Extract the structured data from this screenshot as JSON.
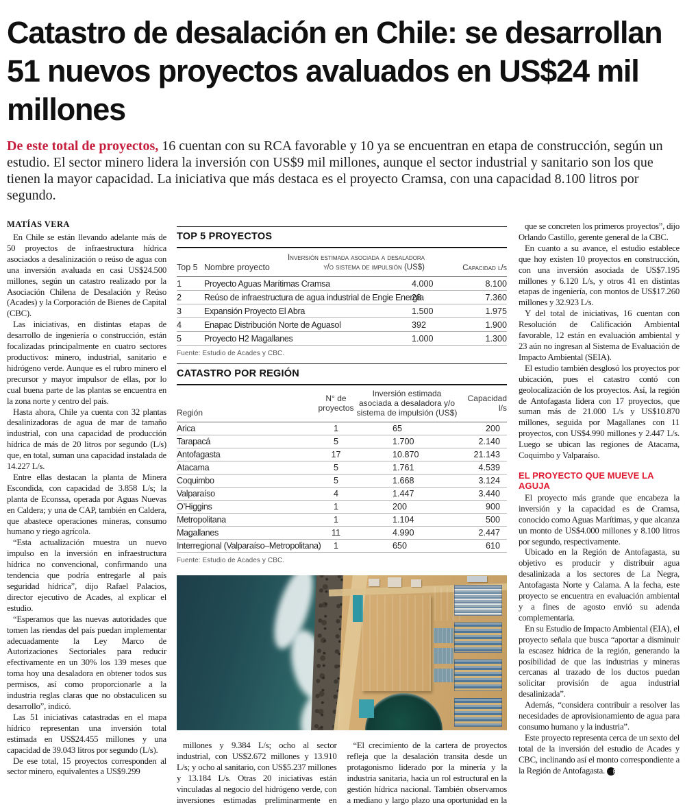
{
  "colors": {
    "accent_red": "#C51F3D",
    "subhead_red": "#E01931"
  },
  "article": {
    "headline": "Catastro de desalación en Chile: se desarrollan 51 nuevos proyectos avaluados en US$24 mil millones",
    "lede_lead_in": "De este total de proyectos,",
    "lede_rest": " 16 cuentan con su RCA favorable y 10 ya se encuentran en etapa de construcción, según un estudio. El sector minero lidera la inversión con US$9 mil millones, aunque el sector industrial y sanitario son los que tienen la mayor capacidad. La iniciativa que más destaca es el proyecto Cramsa, con una capacidad 8.100 litros por segundo.",
    "byline": "MATÍAS VERA"
  },
  "left_column": {
    "paragraphs": [
      "En Chile se están llevando adelante más de 50 proyectos de infraestructura hídrica asociados a desalinización o reúso de agua con una inversión avaluada en casi US$24.500 millones, según un catastro realizado por la Asociación Chilena de Desalación y Reúso (Acades) y la Corporación de Bienes de Capital (CBC).",
      "Las iniciativas, en distintas etapas de desarrollo de ingeniería o construcción, están focalizadas principalmente en cuatro sectores productivos: minero, industrial, sanitario e hidrógeno verde. Aunque es el rubro minero el precursor y mayor impulsor de ellas, por lo cual buena parte de las plantas se encuentra en la zona norte y centro del país.",
      "Hasta ahora, Chile ya cuenta con 32 plantas desalinizadoras de agua de mar de tamaño industrial, con una capacidad de producción hídrica de más de 20 litros por segundo (L/s) que, en total, suman una capacidad instalada de 14.227 L/s.",
      "Entre ellas destacan la planta de Minera Escondida, con capacidad de 3.858 L/s; la planta de Econssa, operada por Aguas Nuevas en Caldera; y una de CAP, también en Caldera, que abastece operaciones mineras, consumo humano y riego agrícola.",
      "“Esta actualización muestra un nuevo impulso en la inversión en infraestructura hídrica no convencional, confirmando una tendencia que podría entregarle al país seguridad hídrica”, dijo Rafael Palacios, director ejecutivo de Acades, al explicar el estudio.",
      "“Esperamos que las nuevas autoridades que tomen las riendas del país puedan implementar adecuadamente la Ley Marco de Autorizaciones Sectoriales para reducir efectivamente en un 30% los 139 meses que toma hoy una desaladora en obtener todos sus permisos, así como proporcionarle a la industria reglas claras que no obstaculicen su desarrollo”, indicó.",
      "Las 51 iniciativas catastradas en el mapa hídrico representan una inversión total estimada en US$24.455 millones y una capacidad de 39.043 litros por segundo (L/s).",
      "De ese total, 15 proyectos corresponden al sector minero, equivalentes a US$9.299"
    ]
  },
  "top5_table": {
    "title": "TOP 5 PROYECTOS",
    "col_headers": [
      "Top 5",
      "Nombre proyecto",
      "Inversión estimada asociada a desaladora y/o sistema de impulsión (US$)",
      "Capacidad l/s"
    ],
    "rows": [
      [
        "1",
        "Proyecto Aguas Marítimas Cramsa",
        "4.000",
        "8.100"
      ],
      [
        "2",
        "Reúso de infraestructura de agua industrial de Engie Energía",
        "28",
        "7.360"
      ],
      [
        "3",
        "Expansión Proyecto El Abra",
        "1.500",
        "1.975"
      ],
      [
        "4",
        "Enapac Distribución Norte de Aguasol",
        "392",
        "1.900"
      ],
      [
        "5",
        "Proyecto H2 Magallanes",
        "1.000",
        "1.300"
      ]
    ],
    "source": "Fuente: Estudio de Acades y CBC."
  },
  "region_table": {
    "title": "CATASTRO POR REGIÓN",
    "col_headers": [
      "Región",
      "N° de proyectos",
      "Inversión estimada asociada a desaladora y/o sistema de impulsión (US$)",
      "Capacidad l/s"
    ],
    "rows": [
      [
        "Arica",
        "1",
        "65",
        "200"
      ],
      [
        "Tarapacá",
        "5",
        "1.700",
        "2.140"
      ],
      [
        "Antofagasta",
        "17",
        "10.870",
        "21.143"
      ],
      [
        "Atacama",
        "5",
        "1.761",
        "4.539"
      ],
      [
        "Coquimbo",
        "5",
        "1.668",
        "3.124"
      ],
      [
        "Valparaíso",
        "4",
        "1.447",
        "3.440"
      ],
      [
        "O’Higgins",
        "1",
        "200",
        "900"
      ],
      [
        "Metropolitana",
        "1",
        "1.104",
        "500"
      ],
      [
        "Magallanes",
        "11",
        "4.990",
        "2.447"
      ],
      [
        "Interregional (Valparaíso–Metropolitana)",
        "1",
        "650",
        "610"
      ]
    ],
    "source": "Fuente: Estudio de Acades y CBC."
  },
  "middle_bottom": {
    "column_a": [
      "millones y 9.384 L/s; ocho al sector industrial, con US$2.672 millones y 13.910 L/s; y ocho al sanitario, con US$5.237 millones y 13.184 L/s. Otras 20 iniciativas están vinculadas al negocio del hidrógeno verde, con inversiones estimadas preliminarmente en US$7.247 millones y una capacidad de al menos 2.565 L/s."
    ],
    "column_b": [
      "“El crecimiento de la cartera de proyectos refleja que la desalación transita desde un protagonismo liderado por la minería y la industria sanitaria, hacia un rol estructural en la gestión hídrica nacional. También observamos a mediano y largo plazo una oportunidad en la industria del hidrógeno verde, que irá madurando en la medida"
    ]
  },
  "right_column": {
    "paragraphs_top": [
      "que se concreten los primeros proyectos”, dijo Orlando Castillo, gerente general de la CBC.",
      "En cuanto a su avance, el estudio establece que hoy existen 10 proyectos en construcción, con una inversión asociada de US$7.195 millones y 6.120 L/s, y otros 41 en distintas etapas de ingeniería, con montos de US$17.260 millones y 32.923 L/s.",
      "Y del total de iniciativas, 16 cuentan con Resolución de Calificación Ambiental favorable, 12 están en evaluación ambiental y 23 aún no ingresan al Sistema de Evaluación de Impacto Ambiental (SEIA).",
      "El estudio también desglosó los proyectos por ubicación, pues el catastro contó con geolocalización de los proyectos. Así, la región de Antofagasta lidera con 17 proyectos, que suman más de 21.000 L/s y US$10.870 millones, seguida por Magallanes con 11 proyectos, con US$4.990 millones y 2.447 L/s. Luego se ubican las regiones de Atacama, Coquimbo y Valparaíso."
    ],
    "subhead": "EL PROYECTO QUE MUEVE LA AGUJA",
    "paragraphs_bottom": [
      "El proyecto más grande que encabeza la inversión y la capacidad es de Cramsa, conocido como Aguas Marítimas, y que alcanza un monto de US$4.000 millones y 8.100 litros por segundo, respectivamente.",
      "Ubicado en la Región de Antofagasta, su objetivo es producir y distribuir agua desalinizada a los sectores de La Negra, Antofagasta Norte y Calama. A la fecha, este proyecto se encuentra en evaluación ambiental y a fines de agosto envió su adenda complementaria.",
      "En su Estudio de Impacto Ambiental (EIA), el proyecto señala que busca “aportar a disminuir la escasez hídrica de la región, generando la posibilidad de que las industrias y mineras cercanas al trazado de los ductos puedan solicitar provisión de agua industrial desalinizada”.",
      "Además, “considera contribuir a resolver las necesidades de aprovisionamiento de agua para consumo humano y la industria”."
    ],
    "closing_paragraph": "Este proyecto representa cerca de un sexto del total de la inversión del estudio de Acades y CBC, inclinando así el monto correspondiente a la Región de Antofagasta.",
    "end_mark": "P"
  }
}
